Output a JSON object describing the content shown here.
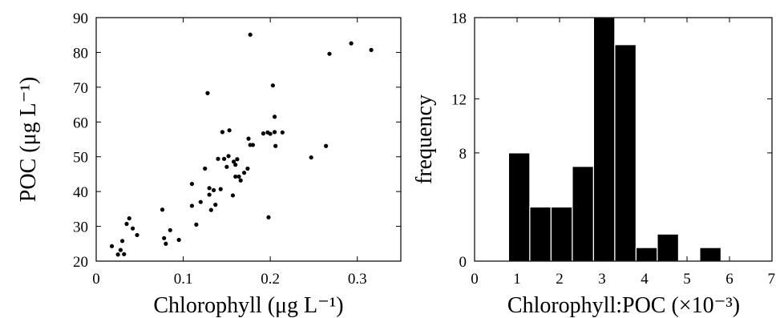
{
  "chart_data": [
    {
      "type": "scatter",
      "xlabel": "Chlorophyll (μg L⁻¹)",
      "ylabel": "POC (μg L⁻¹)",
      "xlim": [
        0,
        0.35
      ],
      "ylim": [
        20,
        90
      ],
      "xticks": [
        "0",
        "0.1",
        "0.2",
        "0.3"
      ],
      "yticks": [
        "20",
        "30",
        "40",
        "50",
        "60",
        "70",
        "80",
        "90"
      ],
      "grid": false,
      "series": [
        {
          "color": "#000000",
          "points": [
            [
              0.018,
              24.3
            ],
            [
              0.025,
              21.9
            ],
            [
              0.028,
              23.2
            ],
            [
              0.03,
              25.8
            ],
            [
              0.032,
              22.0
            ],
            [
              0.035,
              30.7
            ],
            [
              0.038,
              32.3
            ],
            [
              0.042,
              29.4
            ],
            [
              0.047,
              27.5
            ],
            [
              0.076,
              34.8
            ],
            [
              0.078,
              26.6
            ],
            [
              0.08,
              25.0
            ],
            [
              0.085,
              28.9
            ],
            [
              0.095,
              26.1
            ],
            [
              0.11,
              42.2
            ],
            [
              0.11,
              35.9
            ],
            [
              0.115,
              30.5
            ],
            [
              0.12,
              37.0
            ],
            [
              0.125,
              46.6
            ],
            [
              0.128,
              68.3
            ],
            [
              0.13,
              39.1
            ],
            [
              0.13,
              41.0
            ],
            [
              0.132,
              34.7
            ],
            [
              0.135,
              40.4
            ],
            [
              0.137,
              36.2
            ],
            [
              0.14,
              49.4
            ],
            [
              0.143,
              40.7
            ],
            [
              0.145,
              57.1
            ],
            [
              0.147,
              49.4
            ],
            [
              0.15,
              47.1
            ],
            [
              0.152,
              50.2
            ],
            [
              0.153,
              57.6
            ],
            [
              0.157,
              38.9
            ],
            [
              0.158,
              48.6
            ],
            [
              0.16,
              47.7
            ],
            [
              0.16,
              44.3
            ],
            [
              0.162,
              49.3
            ],
            [
              0.164,
              44.3
            ],
            [
              0.166,
              43.2
            ],
            [
              0.17,
              45.4
            ],
            [
              0.174,
              46.6
            ],
            [
              0.175,
              55.2
            ],
            [
              0.177,
              85.1
            ],
            [
              0.177,
              53.4
            ],
            [
              0.18,
              53.4
            ],
            [
              0.192,
              56.7
            ],
            [
              0.197,
              57.0
            ],
            [
              0.198,
              32.6
            ],
            [
              0.2,
              56.6
            ],
            [
              0.203,
              70.5
            ],
            [
              0.205,
              61.5
            ],
            [
              0.205,
              57.1
            ],
            [
              0.206,
              53.1
            ],
            [
              0.214,
              57.0
            ],
            [
              0.247,
              49.8
            ],
            [
              0.264,
              53.1
            ],
            [
              0.268,
              79.6
            ],
            [
              0.293,
              82.6
            ],
            [
              0.316,
              80.7
            ]
          ]
        }
      ]
    },
    {
      "type": "bar",
      "subtype": "histogram",
      "xlabel": "Chlorophyll:POC (×10⁻³)",
      "ylabel": "frequency",
      "xlim": [
        0,
        7
      ],
      "ylim": [
        0,
        18
      ],
      "xticks": [
        "0",
        "1",
        "2",
        "3",
        "4",
        "5",
        "6",
        "7"
      ],
      "yticks": [
        "0",
        "8",
        "12",
        "18"
      ],
      "grid": false,
      "bin_edges": [
        0.8,
        1.3,
        1.8,
        2.3,
        2.8,
        3.3,
        3.8,
        4.3,
        4.8,
        5.3,
        5.8,
        6.3
      ],
      "values": [
        8,
        4,
        4,
        7,
        18,
        16,
        1,
        2,
        0,
        1,
        0
      ],
      "color": "#000000"
    }
  ]
}
